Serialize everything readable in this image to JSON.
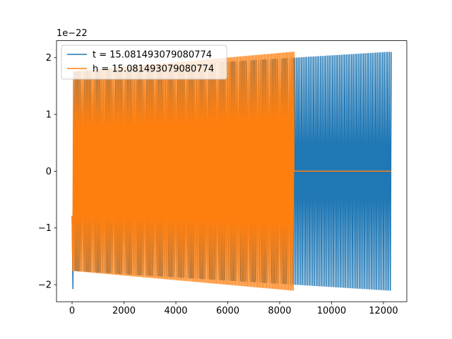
{
  "chart_data": {
    "type": "line",
    "title": "",
    "xlabel": "",
    "ylabel": "",
    "y_offset_label": "1e−22",
    "xlim": [
      -600,
      12900
    ],
    "ylim": [
      -2.3,
      2.3
    ],
    "x_ticks": [
      0,
      2000,
      4000,
      6000,
      8000,
      10000,
      12000
    ],
    "x_tick_labels": [
      "0",
      "2000",
      "4000",
      "6000",
      "8000",
      "10000",
      "12000"
    ],
    "y_ticks": [
      -2,
      -1,
      0,
      1,
      2
    ],
    "y_tick_labels": [
      "−2",
      "−1",
      "0",
      "1",
      "2"
    ],
    "grid": false,
    "legend_position": "top-left",
    "series": [
      {
        "name": "t = 15.081493079080774",
        "color": "#1f77b4",
        "x_end": 12300,
        "amplitude_start": 1.75,
        "amplitude_end": 2.1,
        "initial_spike": -2.07,
        "cycles": 185
      },
      {
        "name": "h = 15.081493079080774",
        "color": "#ff7f0e",
        "x_end": 8550,
        "amplitude_start": 1.75,
        "amplitude_end": 2.1,
        "cycles": 150,
        "flat_until": 12300,
        "flat_value": 0
      }
    ]
  }
}
